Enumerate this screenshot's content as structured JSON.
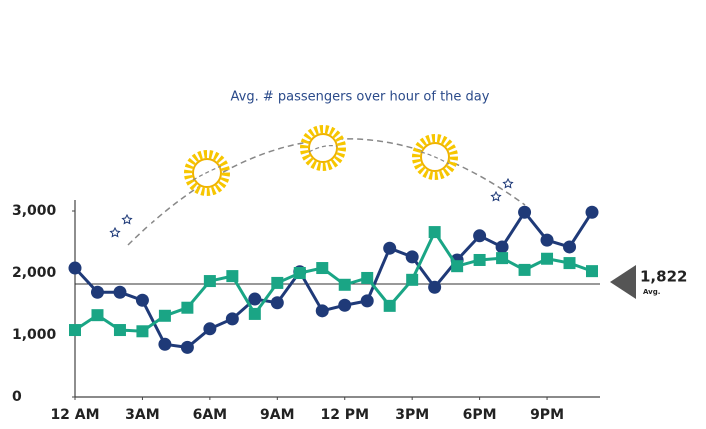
{
  "chart_data": {
    "type": "line",
    "title": "Avg. # passengers over hour of the day",
    "x": [
      0,
      1,
      2,
      3,
      4,
      5,
      6,
      7,
      8,
      9,
      10,
      11,
      12,
      13,
      14,
      15,
      16,
      17,
      18,
      19,
      20,
      21,
      22,
      23
    ],
    "xlim": [
      0,
      23
    ],
    "xticks": [
      {
        "value": 0,
        "label": "12 AM"
      },
      {
        "value": 3,
        "label": "3AM"
      },
      {
        "value": 6,
        "label": "6AM"
      },
      {
        "value": 9,
        "label": "9AM"
      },
      {
        "value": 12,
        "label": "12 PM"
      },
      {
        "value": 15,
        "label": "3PM"
      },
      {
        "value": 18,
        "label": "6PM"
      },
      {
        "value": 21,
        "label": "9PM"
      }
    ],
    "ylim": [
      0,
      3000
    ],
    "yticks": [
      0,
      {
        "value": 1000,
        "label": "1,000"
      },
      {
        "value": 2000,
        "label": "2,000"
      },
      {
        "value": 3000,
        "label": "3,000"
      }
    ],
    "series": [
      {
        "color": "#1f3a78",
        "marker": "circle",
        "values": [
          2080,
          1690,
          1690,
          1560,
          850,
          800,
          1100,
          1260,
          1580,
          1520,
          2020,
          1390,
          1480,
          1550,
          2400,
          2260,
          1770,
          2210,
          2600,
          2420,
          2980,
          2530,
          2420,
          2980
        ]
      },
      {
        "color": "#1aa585",
        "marker": "square",
        "values": [
          1080,
          1320,
          1080,
          1060,
          1310,
          1440,
          1870,
          1950,
          1340,
          1840,
          2000,
          2080,
          1810,
          1920,
          1470,
          1890,
          2660,
          2110,
          2210,
          2240,
          2050,
          2230,
          2160,
          2030
        ]
      }
    ],
    "average": 1822,
    "average_label": "1,822",
    "average_text": "Avg."
  }
}
